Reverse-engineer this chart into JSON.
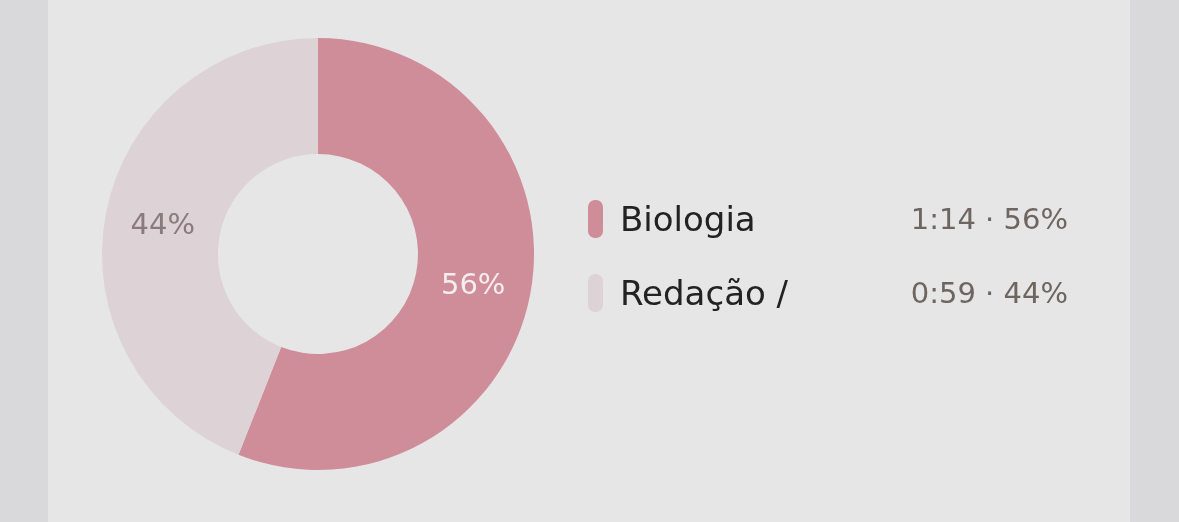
{
  "chart_data": {
    "type": "donut",
    "categories": [
      "Biologia",
      "Redação /"
    ],
    "values": [
      56,
      44
    ],
    "colors": [
      "#cf8c99",
      "#ddd3d6"
    ],
    "value_labels": [
      "56%",
      "44%"
    ],
    "legend": "right",
    "annotations": [
      "1:14 · 56%",
      "0:59 · 44%"
    ]
  }
}
